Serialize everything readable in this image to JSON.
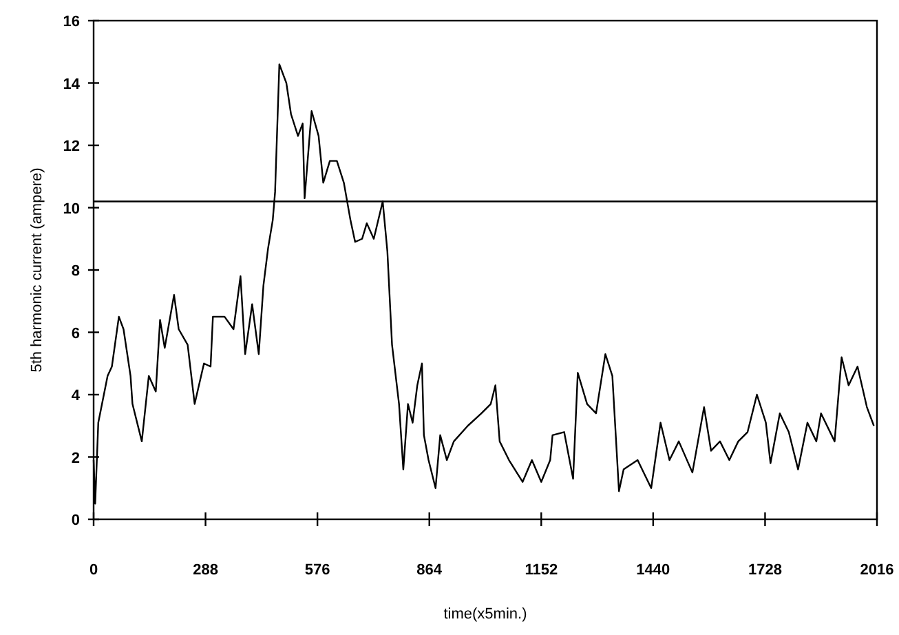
{
  "chart_data": {
    "type": "line",
    "xlabel": "time(x5min.)",
    "ylabel": "5th harmonic current (ampere)",
    "xlim": [
      0,
      2016
    ],
    "xticks": [
      0,
      288,
      576,
      864,
      1152,
      1440,
      1728,
      2016
    ],
    "ylim": [
      0,
      16
    ],
    "yticks": [
      0,
      2,
      4,
      6,
      8,
      10,
      12,
      14,
      16
    ],
    "marker": "none",
    "line_style": "solid",
    "ref_lines": [
      {
        "axis": "y",
        "value": 10.2,
        "color": "#000000"
      }
    ],
    "series": [
      {
        "color": "#000000",
        "x": [
          0,
          4,
          12,
          36,
          47,
          65,
          77,
          95,
          100,
          124,
          142,
          160,
          171,
          183,
          207,
          219,
          242,
          260,
          284,
          301,
          307,
          337,
          360,
          378,
          390,
          408,
          425,
          437,
          449,
          461,
          467,
          478,
          496,
          508,
          526,
          538,
          543,
          561,
          579,
          591,
          608,
          626,
          644,
          661,
          673,
          691,
          703,
          721,
          744,
          756,
          768,
          786,
          797,
          809,
          821,
          833,
          845,
          850,
          862,
          880,
          892,
          909,
          927,
          963,
          998,
          1022,
          1034,
          1045,
          1069,
          1104,
          1128,
          1152,
          1175,
          1181,
          1211,
          1234,
          1246,
          1270,
          1293,
          1317,
          1335,
          1352,
          1364,
          1400,
          1435,
          1459,
          1482,
          1506,
          1541,
          1571,
          1589,
          1612,
          1636,
          1659,
          1683,
          1707,
          1730,
          1742,
          1766,
          1789,
          1813,
          1837,
          1860,
          1872,
          1907,
          1925,
          1943,
          1966,
          1990,
          2008
        ],
        "values": [
          1.9,
          0.5,
          3.1,
          4.6,
          4.9,
          6.5,
          6.1,
          4.6,
          3.7,
          2.5,
          4.6,
          4.1,
          6.4,
          5.5,
          7.2,
          6.1,
          5.6,
          3.7,
          5.0,
          4.9,
          6.5,
          6.5,
          6.1,
          7.8,
          5.3,
          6.9,
          5.3,
          7.5,
          8.7,
          9.6,
          10.5,
          14.6,
          14.0,
          13.0,
          12.3,
          12.7,
          10.3,
          13.1,
          12.3,
          10.8,
          11.5,
          11.5,
          10.8,
          9.6,
          8.9,
          9.0,
          9.5,
          9.0,
          10.2,
          8.6,
          5.6,
          3.7,
          1.6,
          3.7,
          3.1,
          4.3,
          5.0,
          2.7,
          1.9,
          1.0,
          2.7,
          1.9,
          2.5,
          3.0,
          3.4,
          3.7,
          4.3,
          2.5,
          1.9,
          1.2,
          1.9,
          1.2,
          1.9,
          2.7,
          2.8,
          1.3,
          4.7,
          3.7,
          3.4,
          5.3,
          4.6,
          0.9,
          1.6,
          1.9,
          1.0,
          3.1,
          1.9,
          2.5,
          1.5,
          3.6,
          2.2,
          2.5,
          1.9,
          2.5,
          2.8,
          4.0,
          3.1,
          1.8,
          3.4,
          2.8,
          1.6,
          3.1,
          2.5,
          3.4,
          2.5,
          5.2,
          4.3,
          4.9,
          3.6,
          3.0
        ]
      }
    ]
  }
}
